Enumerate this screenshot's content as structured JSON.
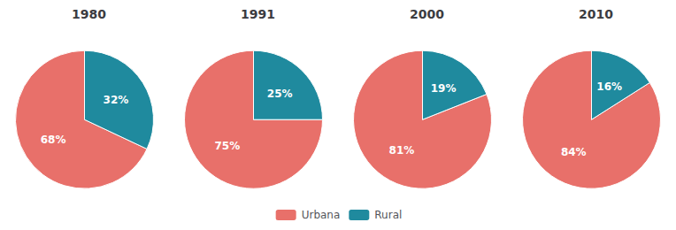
{
  "chart_data": [
    {
      "type": "pie",
      "title": "1980",
      "categories": [
        "Urbana",
        "Rural"
      ],
      "values": [
        68,
        32
      ],
      "value_labels": [
        "68%",
        "32%"
      ],
      "colors": [
        "#e8706a",
        "#1f8a9e"
      ],
      "data_labels": true,
      "legend": "bottom"
    },
    {
      "type": "pie",
      "title": "1991",
      "categories": [
        "Urbana",
        "Rural"
      ],
      "values": [
        75,
        25
      ],
      "value_labels": [
        "75%",
        "25%"
      ],
      "colors": [
        "#e8706a",
        "#1f8a9e"
      ],
      "data_labels": true,
      "legend": "bottom"
    },
    {
      "type": "pie",
      "title": "2000",
      "categories": [
        "Urbana",
        "Rural"
      ],
      "values": [
        81,
        19
      ],
      "value_labels": [
        "81%",
        "19%"
      ],
      "colors": [
        "#e8706a",
        "#1f8a9e"
      ],
      "data_labels": true,
      "legend": "bottom"
    },
    {
      "type": "pie",
      "title": "2010",
      "categories": [
        "Urbana",
        "Rural"
      ],
      "values": [
        84,
        16
      ],
      "value_labels": [
        "84%",
        "16%"
      ],
      "colors": [
        "#e8706a",
        "#1f8a9e"
      ],
      "data_labels": true,
      "legend": "bottom"
    }
  ]
}
